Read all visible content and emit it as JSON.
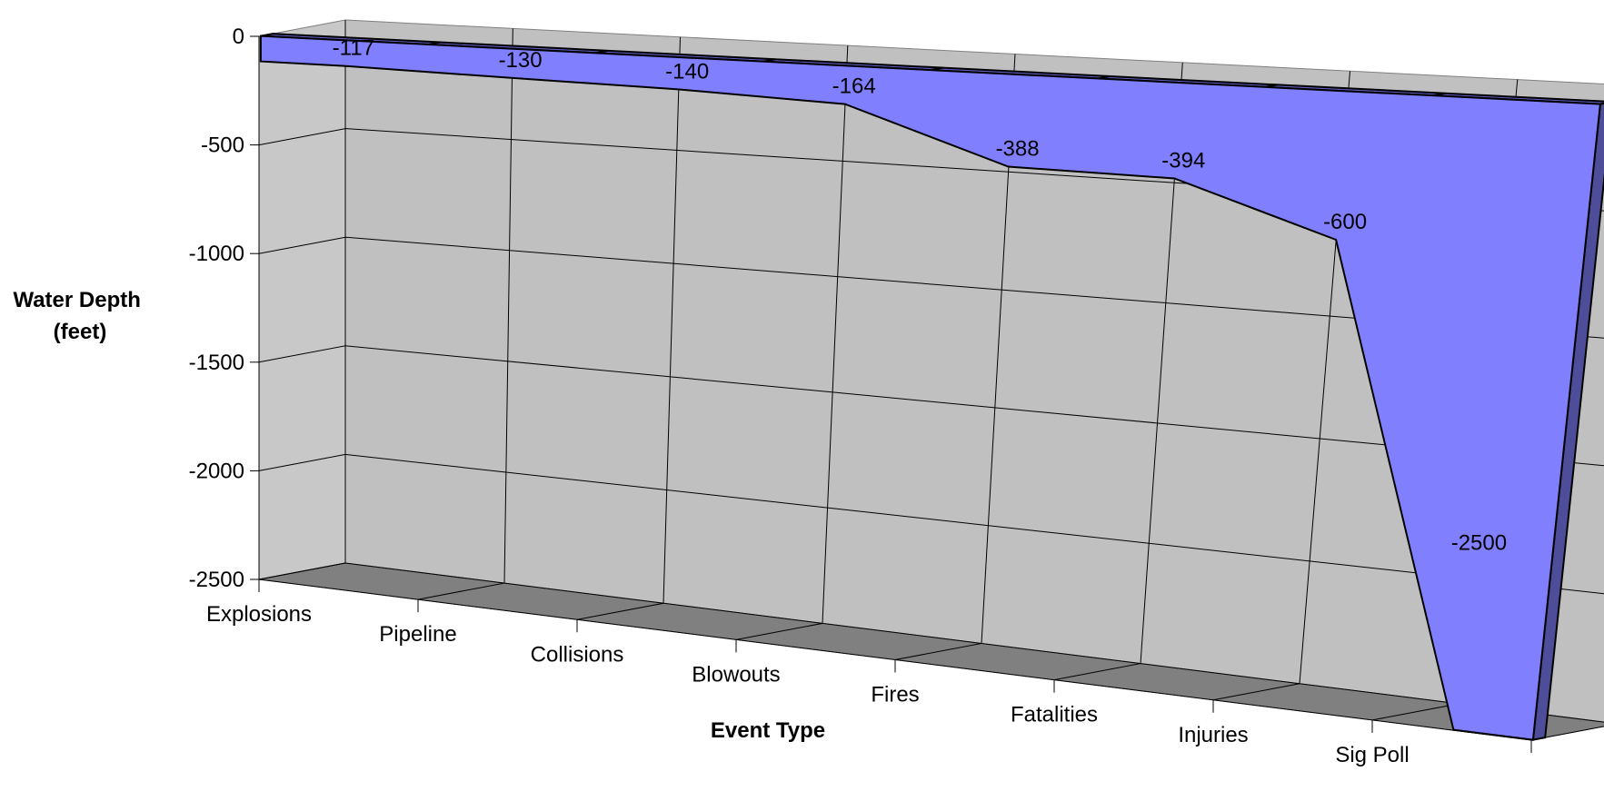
{
  "chart_data": {
    "type": "area",
    "categories": [
      "Explosions",
      "Pipeline",
      "Collisions",
      "Blowouts",
      "Fires",
      "Fatalities",
      "Injuries",
      "Sig Poll"
    ],
    "values": [
      -117,
      -130,
      -140,
      -164,
      -388,
      -394,
      -600,
      -2500
    ],
    "data_labels": [
      "-117",
      "-130",
      "-140",
      "-164",
      "-388",
      "-394",
      "-600",
      "-2500"
    ],
    "xlabel": "Event Type",
    "ylabel": [
      "Water Depth",
      "(feet)"
    ],
    "ylim": [
      -2500,
      0
    ],
    "yticks": [
      0,
      -500,
      -1000,
      -1500,
      -2000,
      -2500
    ],
    "ytick_labels": [
      "0",
      "-500",
      "-1000",
      "-1500",
      "-2000",
      "-2500"
    ],
    "grid": true,
    "three_d": true,
    "legend": "none",
    "colors": {
      "series_front": "#8080ff",
      "series_top": "#5c5cb8",
      "series_side": "#4d4d99",
      "back_wall": "#c0c0c0",
      "side_wall": "#c8c8c8",
      "floor": "#808080",
      "gridline": "#000000"
    }
  }
}
